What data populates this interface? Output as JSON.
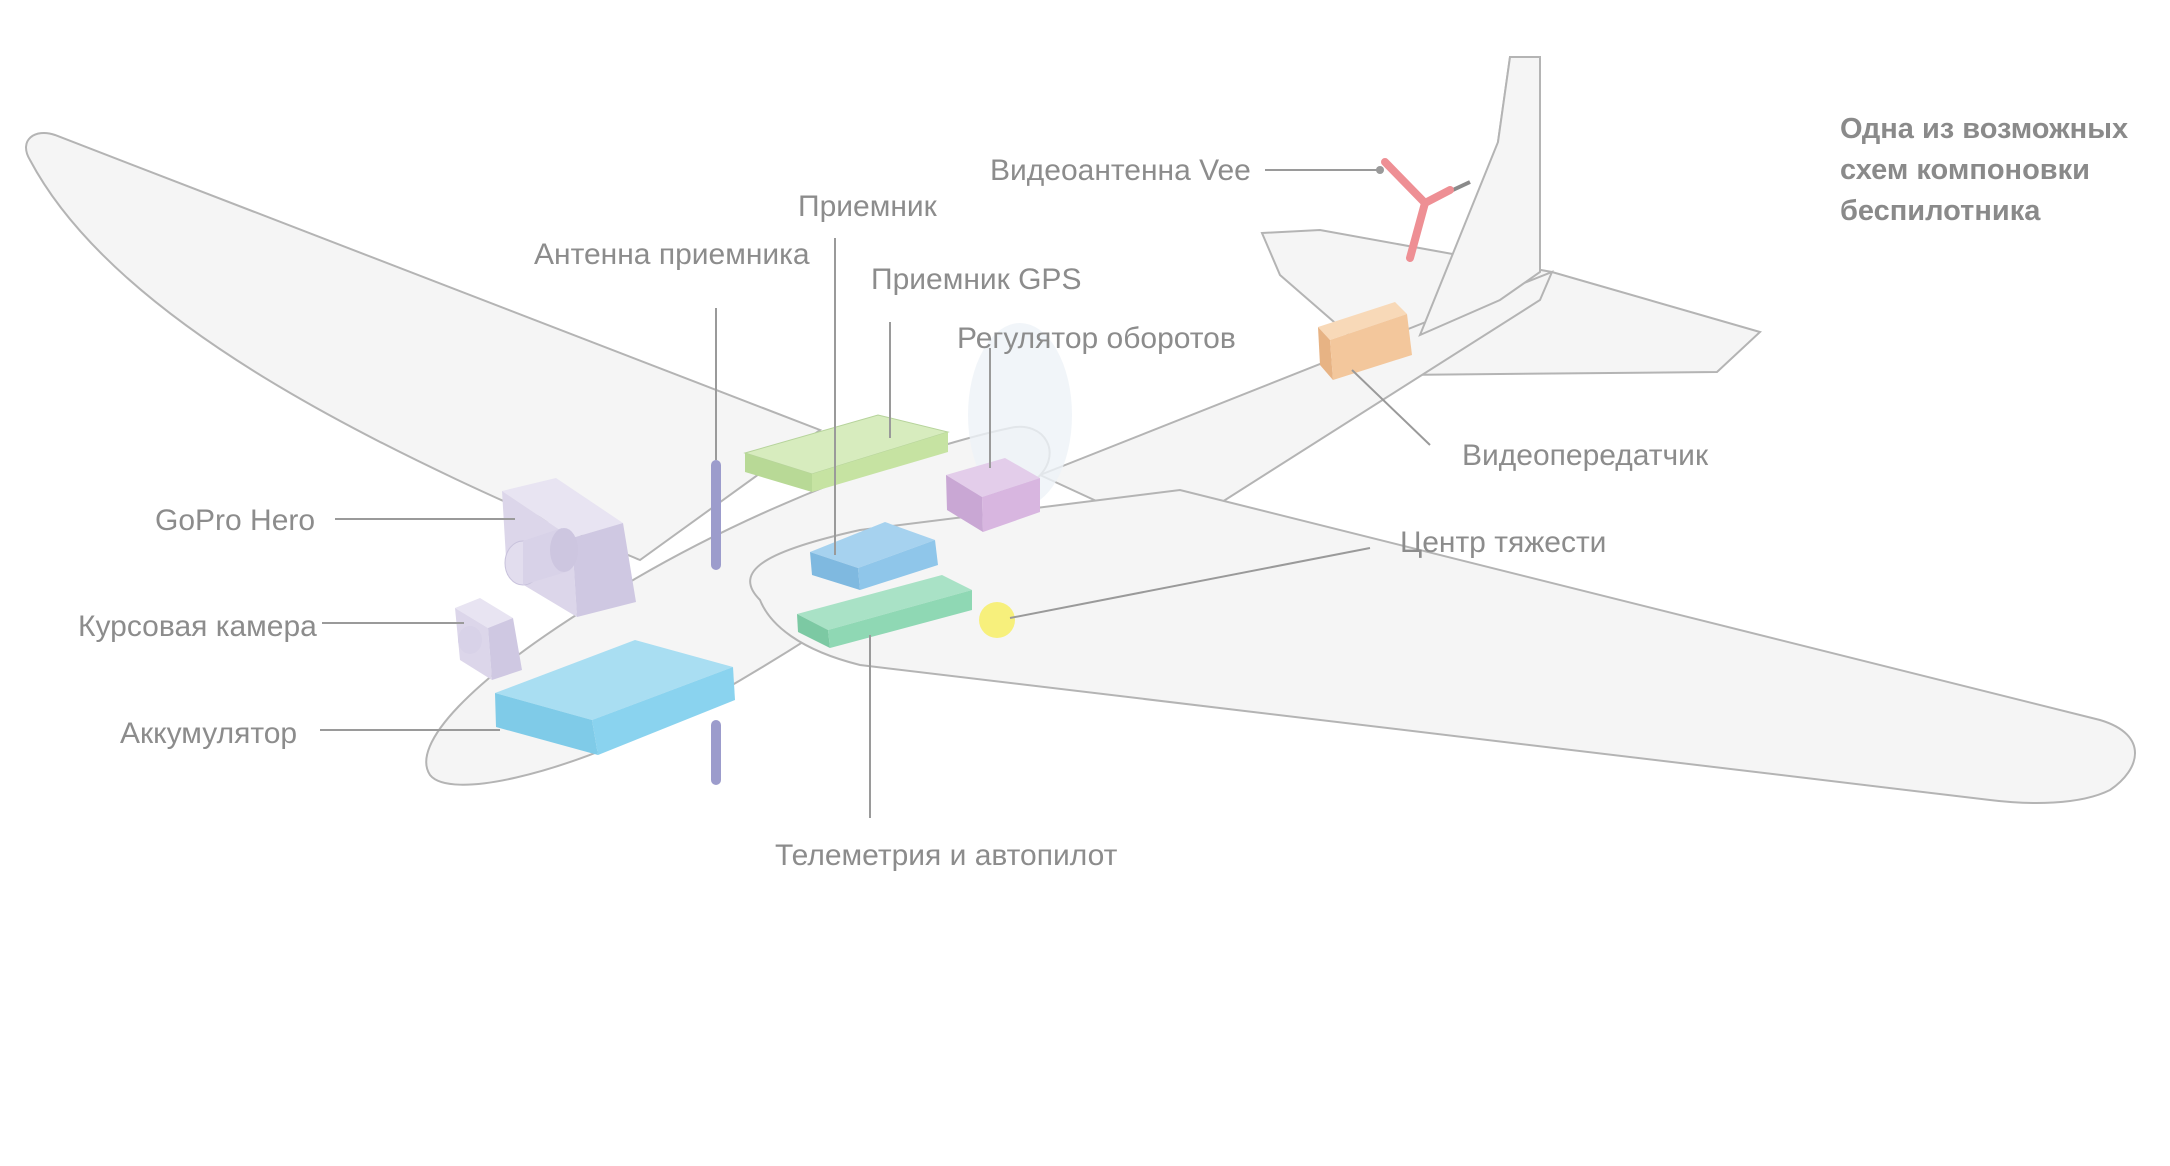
{
  "title": [
    "Одна из возможных",
    "схем компоновки",
    "беспилотника"
  ],
  "labels": {
    "video_antenna": "Видеоантенна Vee",
    "receiver": "Приемник",
    "receiver_antenna": "Антенна приемника",
    "gps": "Приемник GPS",
    "esc": "Регулятор оборотов",
    "video_tx": "Видеопередатчик",
    "cg": "Центр тяжести",
    "gopro": "GoPro Hero",
    "fpv_camera": "Курсовая камера",
    "battery": "Аккумулятор",
    "telemetry": "Телеметрия и автопилот"
  },
  "colors": {
    "battery": "#8ad3ef",
    "gps": "#c6e3a2",
    "receiver": "#8fc6ea",
    "telemetry": "#8fd8b4",
    "esc": "#d8b6e0",
    "video_tx": "#f3c79c",
    "camera": "#ddd8ec",
    "antenna": "#9c9ccc",
    "vee_antenna": "#ee8f94",
    "cg": "#f7f07c"
  }
}
